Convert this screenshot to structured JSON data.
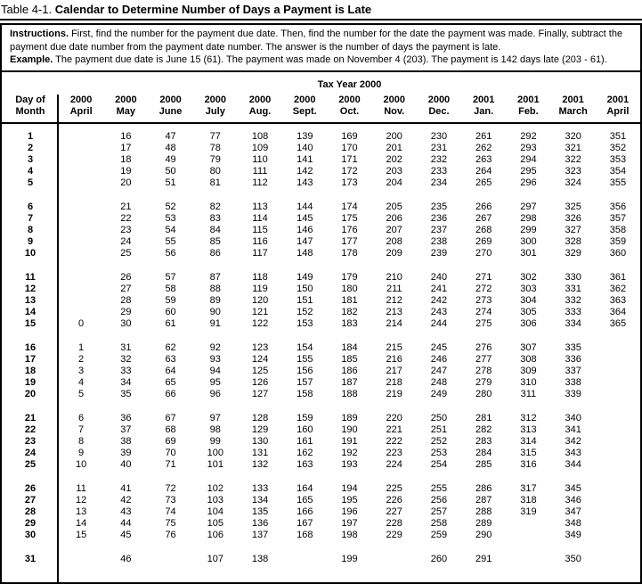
{
  "title": {
    "prefix": "Table 4-1.",
    "bold": "Calendar to Determine Number of Days a Payment is Late"
  },
  "instructions": {
    "label": "Instructions.",
    "text": "First, find the number for the payment due date. Then, find the number for the date the payment was made. Finally, subtract the payment due date number from the payment date number. The answer is the number of days the payment is late.",
    "example_label": "Example.",
    "example_text": "The payment due date is June 15 (61). The payment was made on November 4 (203). The payment is 142 days late (203 - 61)."
  },
  "table": {
    "caption": "Tax Year 2000",
    "day_header_line1": "Day of",
    "day_header_line2": "Month",
    "columns": [
      {
        "year": "2000",
        "month": "April"
      },
      {
        "year": "2000",
        "month": "May"
      },
      {
        "year": "2000",
        "month": "June"
      },
      {
        "year": "2000",
        "month": "July"
      },
      {
        "year": "2000",
        "month": "Aug."
      },
      {
        "year": "2000",
        "month": "Sept."
      },
      {
        "year": "2000",
        "month": "Oct."
      },
      {
        "year": "2000",
        "month": "Nov."
      },
      {
        "year": "2000",
        "month": "Dec."
      },
      {
        "year": "2001",
        "month": "Jan."
      },
      {
        "year": "2001",
        "month": "Feb."
      },
      {
        "year": "2001",
        "month": "March"
      },
      {
        "year": "2001",
        "month": "April"
      }
    ],
    "row_groups": [
      {
        "rows": [
          {
            "day": "1",
            "values": [
              "",
              "16",
              "47",
              "77",
              "108",
              "139",
              "169",
              "200",
              "230",
              "261",
              "292",
              "320",
              "351"
            ]
          },
          {
            "day": "2",
            "values": [
              "",
              "17",
              "48",
              "78",
              "109",
              "140",
              "170",
              "201",
              "231",
              "262",
              "293",
              "321",
              "352"
            ]
          },
          {
            "day": "3",
            "values": [
              "",
              "18",
              "49",
              "79",
              "110",
              "141",
              "171",
              "202",
              "232",
              "263",
              "294",
              "322",
              "353"
            ]
          },
          {
            "day": "4",
            "values": [
              "",
              "19",
              "50",
              "80",
              "111",
              "142",
              "172",
              "203",
              "233",
              "264",
              "295",
              "323",
              "354"
            ]
          },
          {
            "day": "5",
            "values": [
              "",
              "20",
              "51",
              "81",
              "112",
              "143",
              "173",
              "204",
              "234",
              "265",
              "296",
              "324",
              "355"
            ]
          }
        ]
      },
      {
        "rows": [
          {
            "day": "6",
            "values": [
              "",
              "21",
              "52",
              "82",
              "113",
              "144",
              "174",
              "205",
              "235",
              "266",
              "297",
              "325",
              "356"
            ]
          },
          {
            "day": "7",
            "values": [
              "",
              "22",
              "53",
              "83",
              "114",
              "145",
              "175",
              "206",
              "236",
              "267",
              "298",
              "326",
              "357"
            ]
          },
          {
            "day": "8",
            "values": [
              "",
              "23",
              "54",
              "84",
              "115",
              "146",
              "176",
              "207",
              "237",
              "268",
              "299",
              "327",
              "358"
            ]
          },
          {
            "day": "9",
            "values": [
              "",
              "24",
              "55",
              "85",
              "116",
              "147",
              "177",
              "208",
              "238",
              "269",
              "300",
              "328",
              "359"
            ]
          },
          {
            "day": "10",
            "values": [
              "",
              "25",
              "56",
              "86",
              "117",
              "148",
              "178",
              "209",
              "239",
              "270",
              "301",
              "329",
              "360"
            ]
          }
        ]
      },
      {
        "rows": [
          {
            "day": "11",
            "values": [
              "",
              "26",
              "57",
              "87",
              "118",
              "149",
              "179",
              "210",
              "240",
              "271",
              "302",
              "330",
              "361"
            ]
          },
          {
            "day": "12",
            "values": [
              "",
              "27",
              "58",
              "88",
              "119",
              "150",
              "180",
              "211",
              "241",
              "272",
              "303",
              "331",
              "362"
            ]
          },
          {
            "day": "13",
            "values": [
              "",
              "28",
              "59",
              "89",
              "120",
              "151",
              "181",
              "212",
              "242",
              "273",
              "304",
              "332",
              "363"
            ]
          },
          {
            "day": "14",
            "values": [
              "",
              "29",
              "60",
              "90",
              "121",
              "152",
              "182",
              "213",
              "243",
              "274",
              "305",
              "333",
              "364"
            ]
          },
          {
            "day": "15",
            "values": [
              "0",
              "30",
              "61",
              "91",
              "122",
              "153",
              "183",
              "214",
              "244",
              "275",
              "306",
              "334",
              "365"
            ]
          }
        ]
      },
      {
        "rows": [
          {
            "day": "16",
            "values": [
              "1",
              "31",
              "62",
              "92",
              "123",
              "154",
              "184",
              "215",
              "245",
              "276",
              "307",
              "335",
              ""
            ]
          },
          {
            "day": "17",
            "values": [
              "2",
              "32",
              "63",
              "93",
              "124",
              "155",
              "185",
              "216",
              "246",
              "277",
              "308",
              "336",
              ""
            ]
          },
          {
            "day": "18",
            "values": [
              "3",
              "33",
              "64",
              "94",
              "125",
              "156",
              "186",
              "217",
              "247",
              "278",
              "309",
              "337",
              ""
            ]
          },
          {
            "day": "19",
            "values": [
              "4",
              "34",
              "65",
              "95",
              "126",
              "157",
              "187",
              "218",
              "248",
              "279",
              "310",
              "338",
              ""
            ]
          },
          {
            "day": "20",
            "values": [
              "5",
              "35",
              "66",
              "96",
              "127",
              "158",
              "188",
              "219",
              "249",
              "280",
              "311",
              "339",
              ""
            ]
          }
        ]
      },
      {
        "rows": [
          {
            "day": "21",
            "values": [
              "6",
              "36",
              "67",
              "97",
              "128",
              "159",
              "189",
              "220",
              "250",
              "281",
              "312",
              "340",
              ""
            ]
          },
          {
            "day": "22",
            "values": [
              "7",
              "37",
              "68",
              "98",
              "129",
              "160",
              "190",
              "221",
              "251",
              "282",
              "313",
              "341",
              ""
            ]
          },
          {
            "day": "23",
            "values": [
              "8",
              "38",
              "69",
              "99",
              "130",
              "161",
              "191",
              "222",
              "252",
              "283",
              "314",
              "342",
              ""
            ]
          },
          {
            "day": "24",
            "values": [
              "9",
              "39",
              "70",
              "100",
              "131",
              "162",
              "192",
              "223",
              "253",
              "284",
              "315",
              "343",
              ""
            ]
          },
          {
            "day": "25",
            "values": [
              "10",
              "40",
              "71",
              "101",
              "132",
              "163",
              "193",
              "224",
              "254",
              "285",
              "316",
              "344",
              ""
            ]
          }
        ]
      },
      {
        "rows": [
          {
            "day": "26",
            "values": [
              "11",
              "41",
              "72",
              "102",
              "133",
              "164",
              "194",
              "225",
              "255",
              "286",
              "317",
              "345",
              ""
            ]
          },
          {
            "day": "27",
            "values": [
              "12",
              "42",
              "73",
              "103",
              "134",
              "165",
              "195",
              "226",
              "256",
              "287",
              "318",
              "346",
              ""
            ]
          },
          {
            "day": "28",
            "values": [
              "13",
              "43",
              "74",
              "104",
              "135",
              "166",
              "196",
              "227",
              "257",
              "288",
              "319",
              "347",
              ""
            ]
          },
          {
            "day": "29",
            "values": [
              "14",
              "44",
              "75",
              "105",
              "136",
              "167",
              "197",
              "228",
              "258",
              "289",
              "",
              "348",
              ""
            ]
          },
          {
            "day": "30",
            "values": [
              "15",
              "45",
              "76",
              "106",
              "137",
              "168",
              "198",
              "229",
              "259",
              "290",
              "",
              "349",
              ""
            ]
          }
        ]
      },
      {
        "rows": [
          {
            "day": "31",
            "values": [
              "",
              "46",
              "",
              "107",
              "138",
              "",
              "199",
              "",
              "260",
              "291",
              "",
              "350",
              ""
            ]
          }
        ]
      }
    ]
  }
}
